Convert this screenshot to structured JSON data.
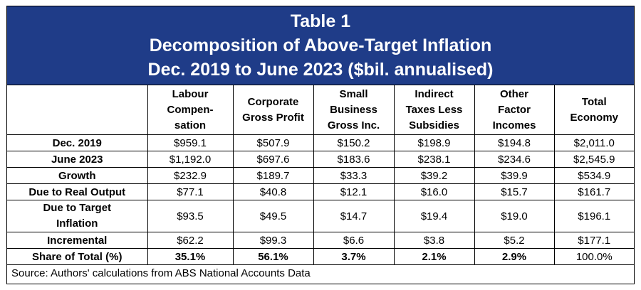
{
  "chart_data": {
    "type": "table",
    "title": "Table 1",
    "subtitle_line1": "Decomposition of Above-Target Inflation",
    "subtitle_line2": "Dec. 2019 to June 2023 ($bil. annualised)",
    "columns": [
      "",
      "Labour Compen-sation",
      "Corporate Gross Profit",
      "Small Business Gross Inc.",
      "Indirect Taxes Less Subsidies",
      "Other Factor Incomes",
      "Total Economy"
    ],
    "rows": [
      {
        "label": "Dec. 2019",
        "values": [
          "$959.1",
          "$507.9",
          "$150.2",
          "$198.9",
          "$194.8",
          "$2,011.0"
        ]
      },
      {
        "label": "June 2023",
        "values": [
          "$1,192.0",
          "$697.6",
          "$183.6",
          "$238.1",
          "$234.6",
          "$2,545.9"
        ]
      },
      {
        "label": "Growth",
        "values": [
          "$232.9",
          "$189.7",
          "$33.3",
          "$39.2",
          "$39.9",
          "$534.9"
        ]
      },
      {
        "label": "Due to Real Output",
        "values": [
          "$77.1",
          "$40.8",
          "$12.1",
          "$16.0",
          "$15.7",
          "$161.7"
        ]
      },
      {
        "label": "Due to Target Inflation",
        "values": [
          "$93.5",
          "$49.5",
          "$14.7",
          "$19.4",
          "$19.0",
          "$196.1"
        ]
      },
      {
        "label": "Incremental",
        "values": [
          "$62.2",
          "$99.3",
          "$6.6",
          "$3.8",
          "$5.2",
          "$177.1"
        ]
      },
      {
        "label": "Share of Total (%)",
        "values": [
          "35.1%",
          "56.1%",
          "3.7%",
          "2.1%",
          "2.9%",
          "100.0%"
        ]
      }
    ],
    "source": "Source: Authors' calculations from ABS National Accounts Data"
  },
  "colors": {
    "title_background": "#1f3c88",
    "title_text": "#ffffff"
  }
}
